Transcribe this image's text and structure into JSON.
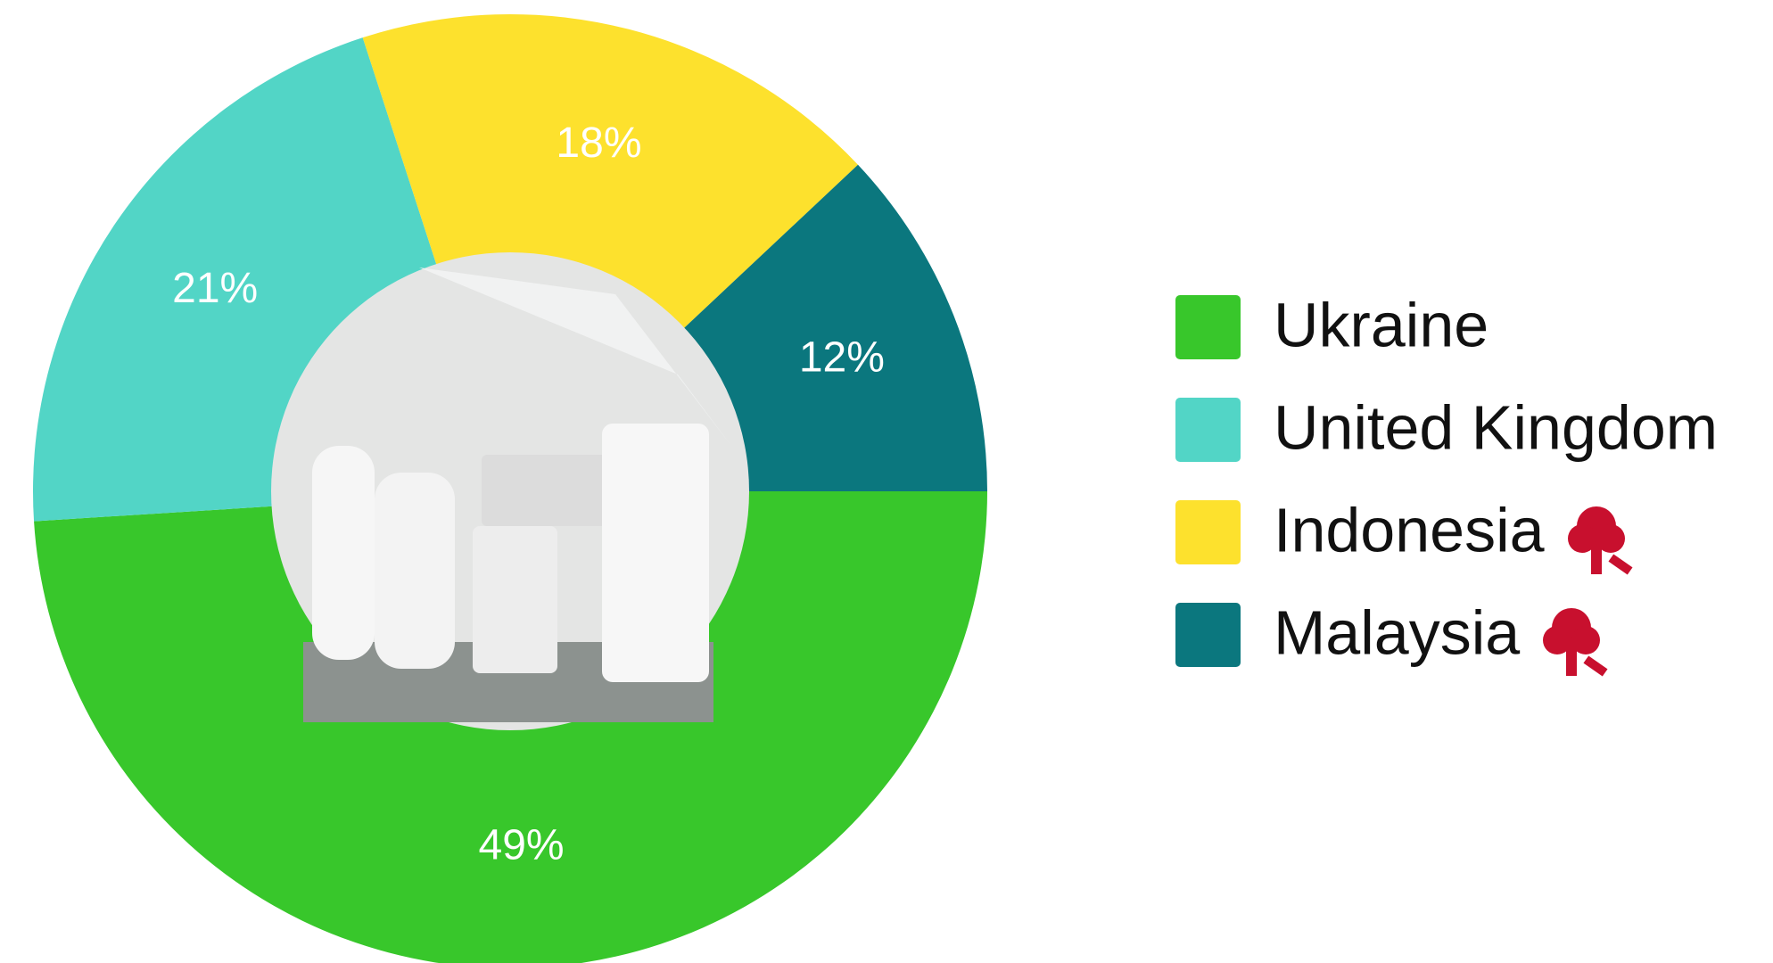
{
  "chart_data": {
    "type": "donut",
    "categories": [
      "Ukraine",
      "United Kingdom",
      "Indonesia",
      "Malaysia"
    ],
    "values": [
      49,
      21,
      18,
      12
    ],
    "value_labels": [
      "49%",
      "21%",
      "18%",
      "12%"
    ],
    "colors": [
      "#38c72b",
      "#52d5c6",
      "#fde12d",
      "#0b777e"
    ],
    "legend": "right"
  }
}
